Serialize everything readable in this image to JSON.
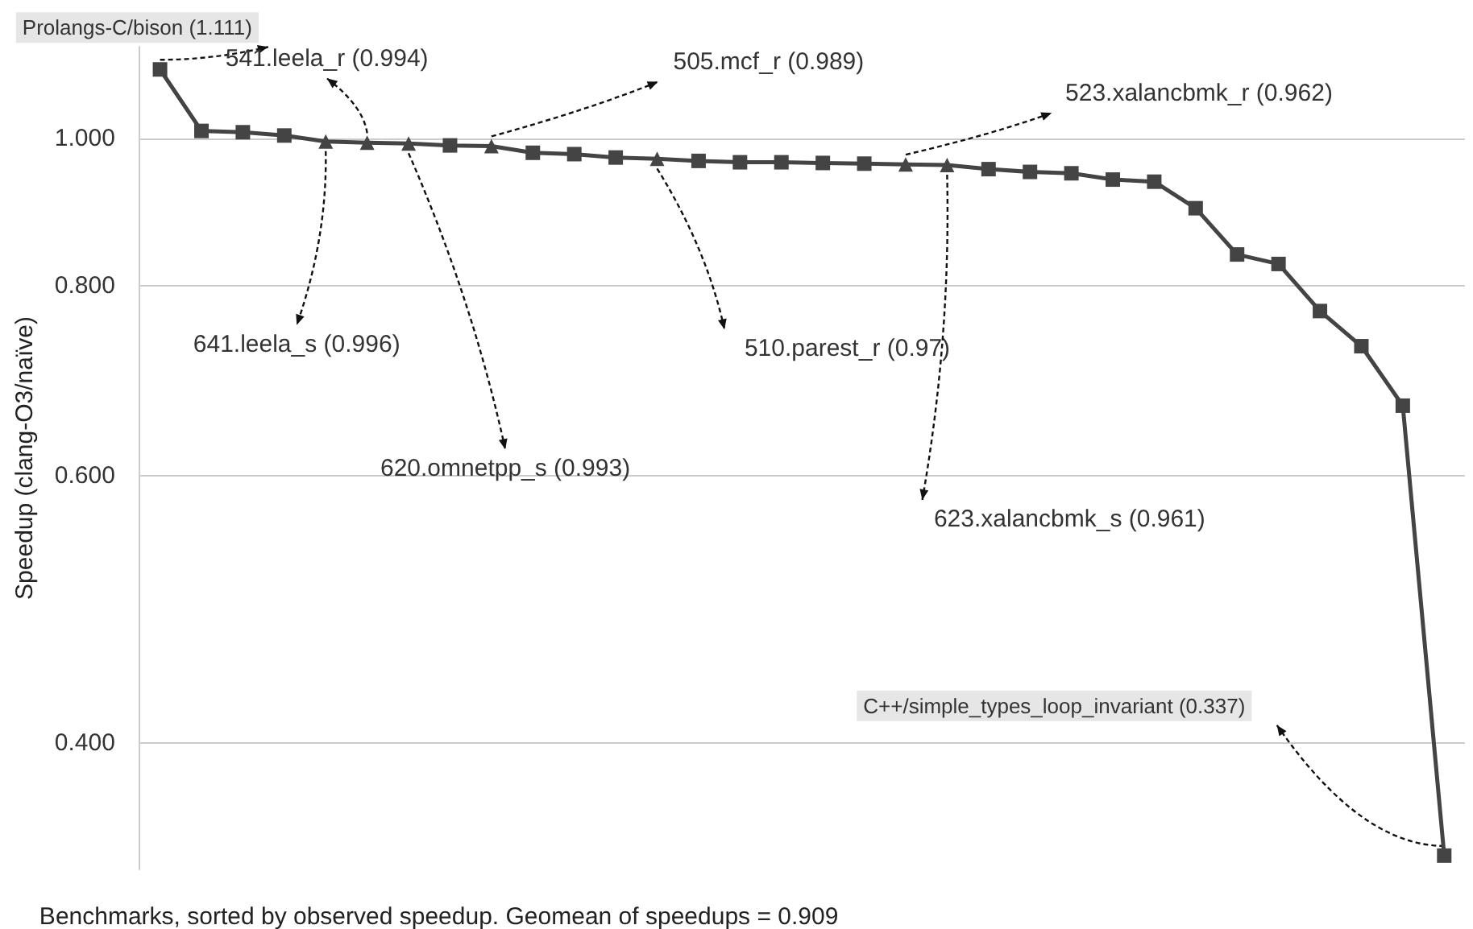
{
  "chart_data": {
    "type": "line",
    "ylabel": "Speedup (clang-O3/naïve)",
    "xlabel": "Benchmarks, sorted by observed speedup. Geomean of speedups = 0.909",
    "categories": [
      null,
      null,
      null,
      null,
      null,
      null,
      null,
      null,
      null,
      null,
      null,
      null,
      null,
      null,
      null,
      null,
      null,
      null,
      null,
      null,
      null,
      null,
      null,
      null,
      null,
      null,
      null,
      null,
      null,
      null,
      null,
      null
    ],
    "series": [
      {
        "color": "#444444",
        "values": [
          1.111,
          1.012,
          1.01,
          1.005,
          0.996,
          0.994,
          0.993,
          0.99,
          0.989,
          0.979,
          0.977,
          0.972,
          0.97,
          0.967,
          0.965,
          0.965,
          0.964,
          0.963,
          0.962,
          0.961,
          0.955,
          0.951,
          0.949,
          0.94,
          0.937,
          0.9,
          0.839,
          0.827,
          0.77,
          0.73,
          0.667,
          0.337
        ]
      }
    ],
    "log": "y",
    "ylim": [
      0.33,
      1.15
    ],
    "yticks": [
      {
        "value": 0.4,
        "label": "0.400"
      },
      {
        "value": 0.6,
        "label": "0.600"
      },
      {
        "value": 0.8,
        "label": "0.800"
      },
      {
        "value": 1.0,
        "label": "1.000"
      }
    ],
    "grid": "y",
    "marker": "square",
    "line_style": "solid",
    "annotations": [
      "Prolangs-C/bison (1.111)",
      "541.leela_r (0.994)",
      "505.mcf_r (0.989)",
      "523.xalancbmk_r (0.962)",
      "641.leela_s (0.996)",
      "620.omnetpp_s (0.993)",
      "510.parest_r (0.97)",
      "623.xalancbmk_s (0.961)",
      "C++/simple_types_loop_invariant (0.337)"
    ]
  }
}
